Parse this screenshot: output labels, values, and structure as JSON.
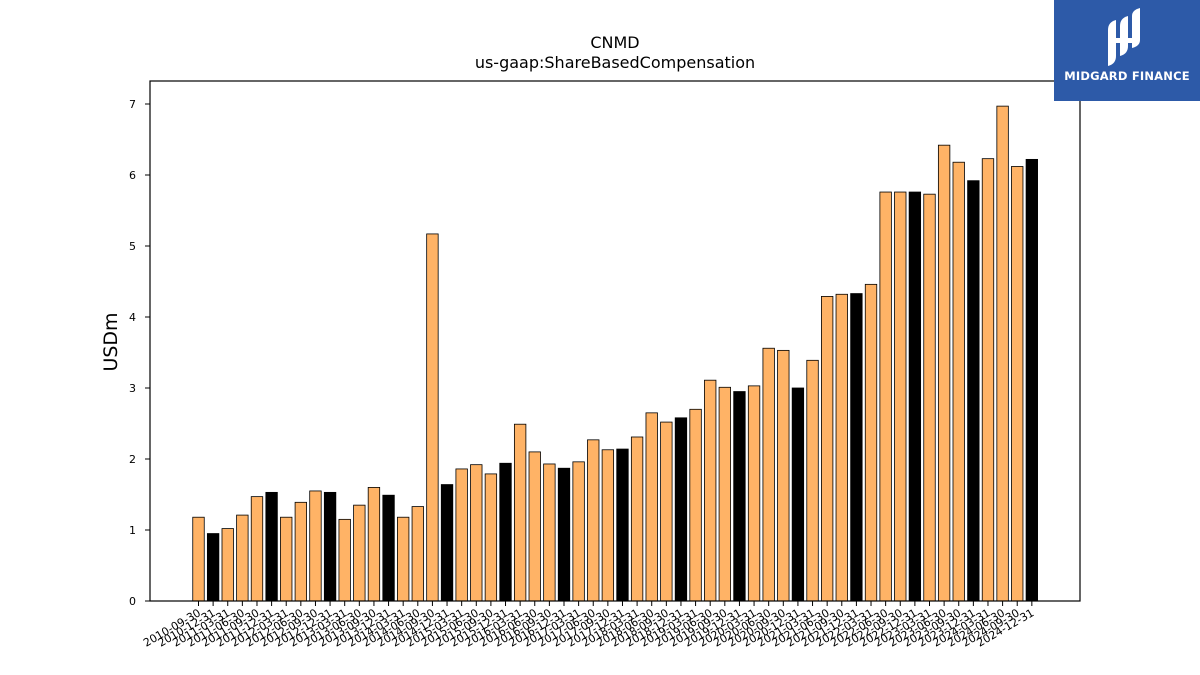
{
  "brand": {
    "name": "MIDGARD FINANCE",
    "bg_color": "#2d5aa8"
  },
  "chart_data": {
    "type": "bar",
    "title": "CNMD",
    "subtitle": "us-gaap:ShareBasedCompensation",
    "xlabel": "",
    "ylabel": "USDm",
    "ylim": [
      0,
      7.3
    ],
    "yticks": [
      0,
      1,
      2,
      3,
      4,
      5,
      6,
      7
    ],
    "grid": false,
    "colors": {
      "quarter": "#ffb366",
      "annual": "#000000",
      "edge": "#000000"
    },
    "categories": [
      "2010-09-30",
      "2010-12-31",
      "2011-03-31",
      "2011-06-30",
      "2011-09-30",
      "2011-12-31",
      "2012-03-31",
      "2012-06-30",
      "2012-09-30",
      "2012-12-31",
      "2013-03-31",
      "2013-06-30",
      "2013-09-30",
      "2013-12-31",
      "2014-03-31",
      "2014-06-30",
      "2014-09-30",
      "2014-12-31",
      "2015-03-31",
      "2015-06-30",
      "2015-09-30",
      "2015-12-31",
      "2016-03-31",
      "2016-06-30",
      "2016-09-30",
      "2016-12-31",
      "2017-03-31",
      "2017-06-30",
      "2017-09-30",
      "2017-12-31",
      "2018-03-31",
      "2018-06-30",
      "2018-09-30",
      "2018-12-31",
      "2019-03-31",
      "2019-06-30",
      "2019-09-30",
      "2019-12-31",
      "2020-03-31",
      "2020-06-30",
      "2020-09-30",
      "2020-12-31",
      "2021-03-31",
      "2021-06-30",
      "2021-09-30",
      "2021-12-31",
      "2022-03-31",
      "2022-06-30",
      "2022-09-30",
      "2022-12-31",
      "2023-03-31",
      "2023-06-30",
      "2023-09-30",
      "2023-12-31",
      "2024-03-31",
      "2024-06-30",
      "2024-09-30",
      "2024-12-31"
    ],
    "values": [
      1.18,
      0.95,
      1.02,
      1.21,
      1.47,
      1.53,
      1.18,
      1.39,
      1.55,
      1.53,
      1.15,
      1.35,
      1.6,
      1.49,
      1.18,
      1.33,
      5.17,
      1.64,
      1.86,
      1.92,
      1.79,
      1.94,
      2.49,
      2.1,
      1.93,
      1.87,
      1.96,
      2.27,
      2.13,
      2.14,
      2.31,
      2.65,
      2.52,
      2.58,
      2.7,
      3.11,
      3.01,
      2.95,
      3.03,
      3.56,
      3.53,
      3.0,
      3.39,
      4.29,
      4.32,
      4.33,
      4.46,
      5.76,
      5.76,
      5.76,
      5.73,
      6.42,
      6.18,
      5.92,
      6.23,
      6.97,
      6.12,
      6.22
    ],
    "bar_kind": [
      "q",
      "a",
      "q",
      "q",
      "q",
      "a",
      "q",
      "q",
      "q",
      "a",
      "q",
      "q",
      "q",
      "a",
      "q",
      "q",
      "q",
      "a",
      "q",
      "q",
      "q",
      "a",
      "q",
      "q",
      "q",
      "a",
      "q",
      "q",
      "q",
      "a",
      "q",
      "q",
      "q",
      "a",
      "q",
      "q",
      "q",
      "a",
      "q",
      "q",
      "q",
      "a",
      "q",
      "q",
      "q",
      "a",
      "q",
      "q",
      "q",
      "a",
      "q",
      "q",
      "q",
      "a",
      "q",
      "q",
      "q",
      "a"
    ]
  }
}
